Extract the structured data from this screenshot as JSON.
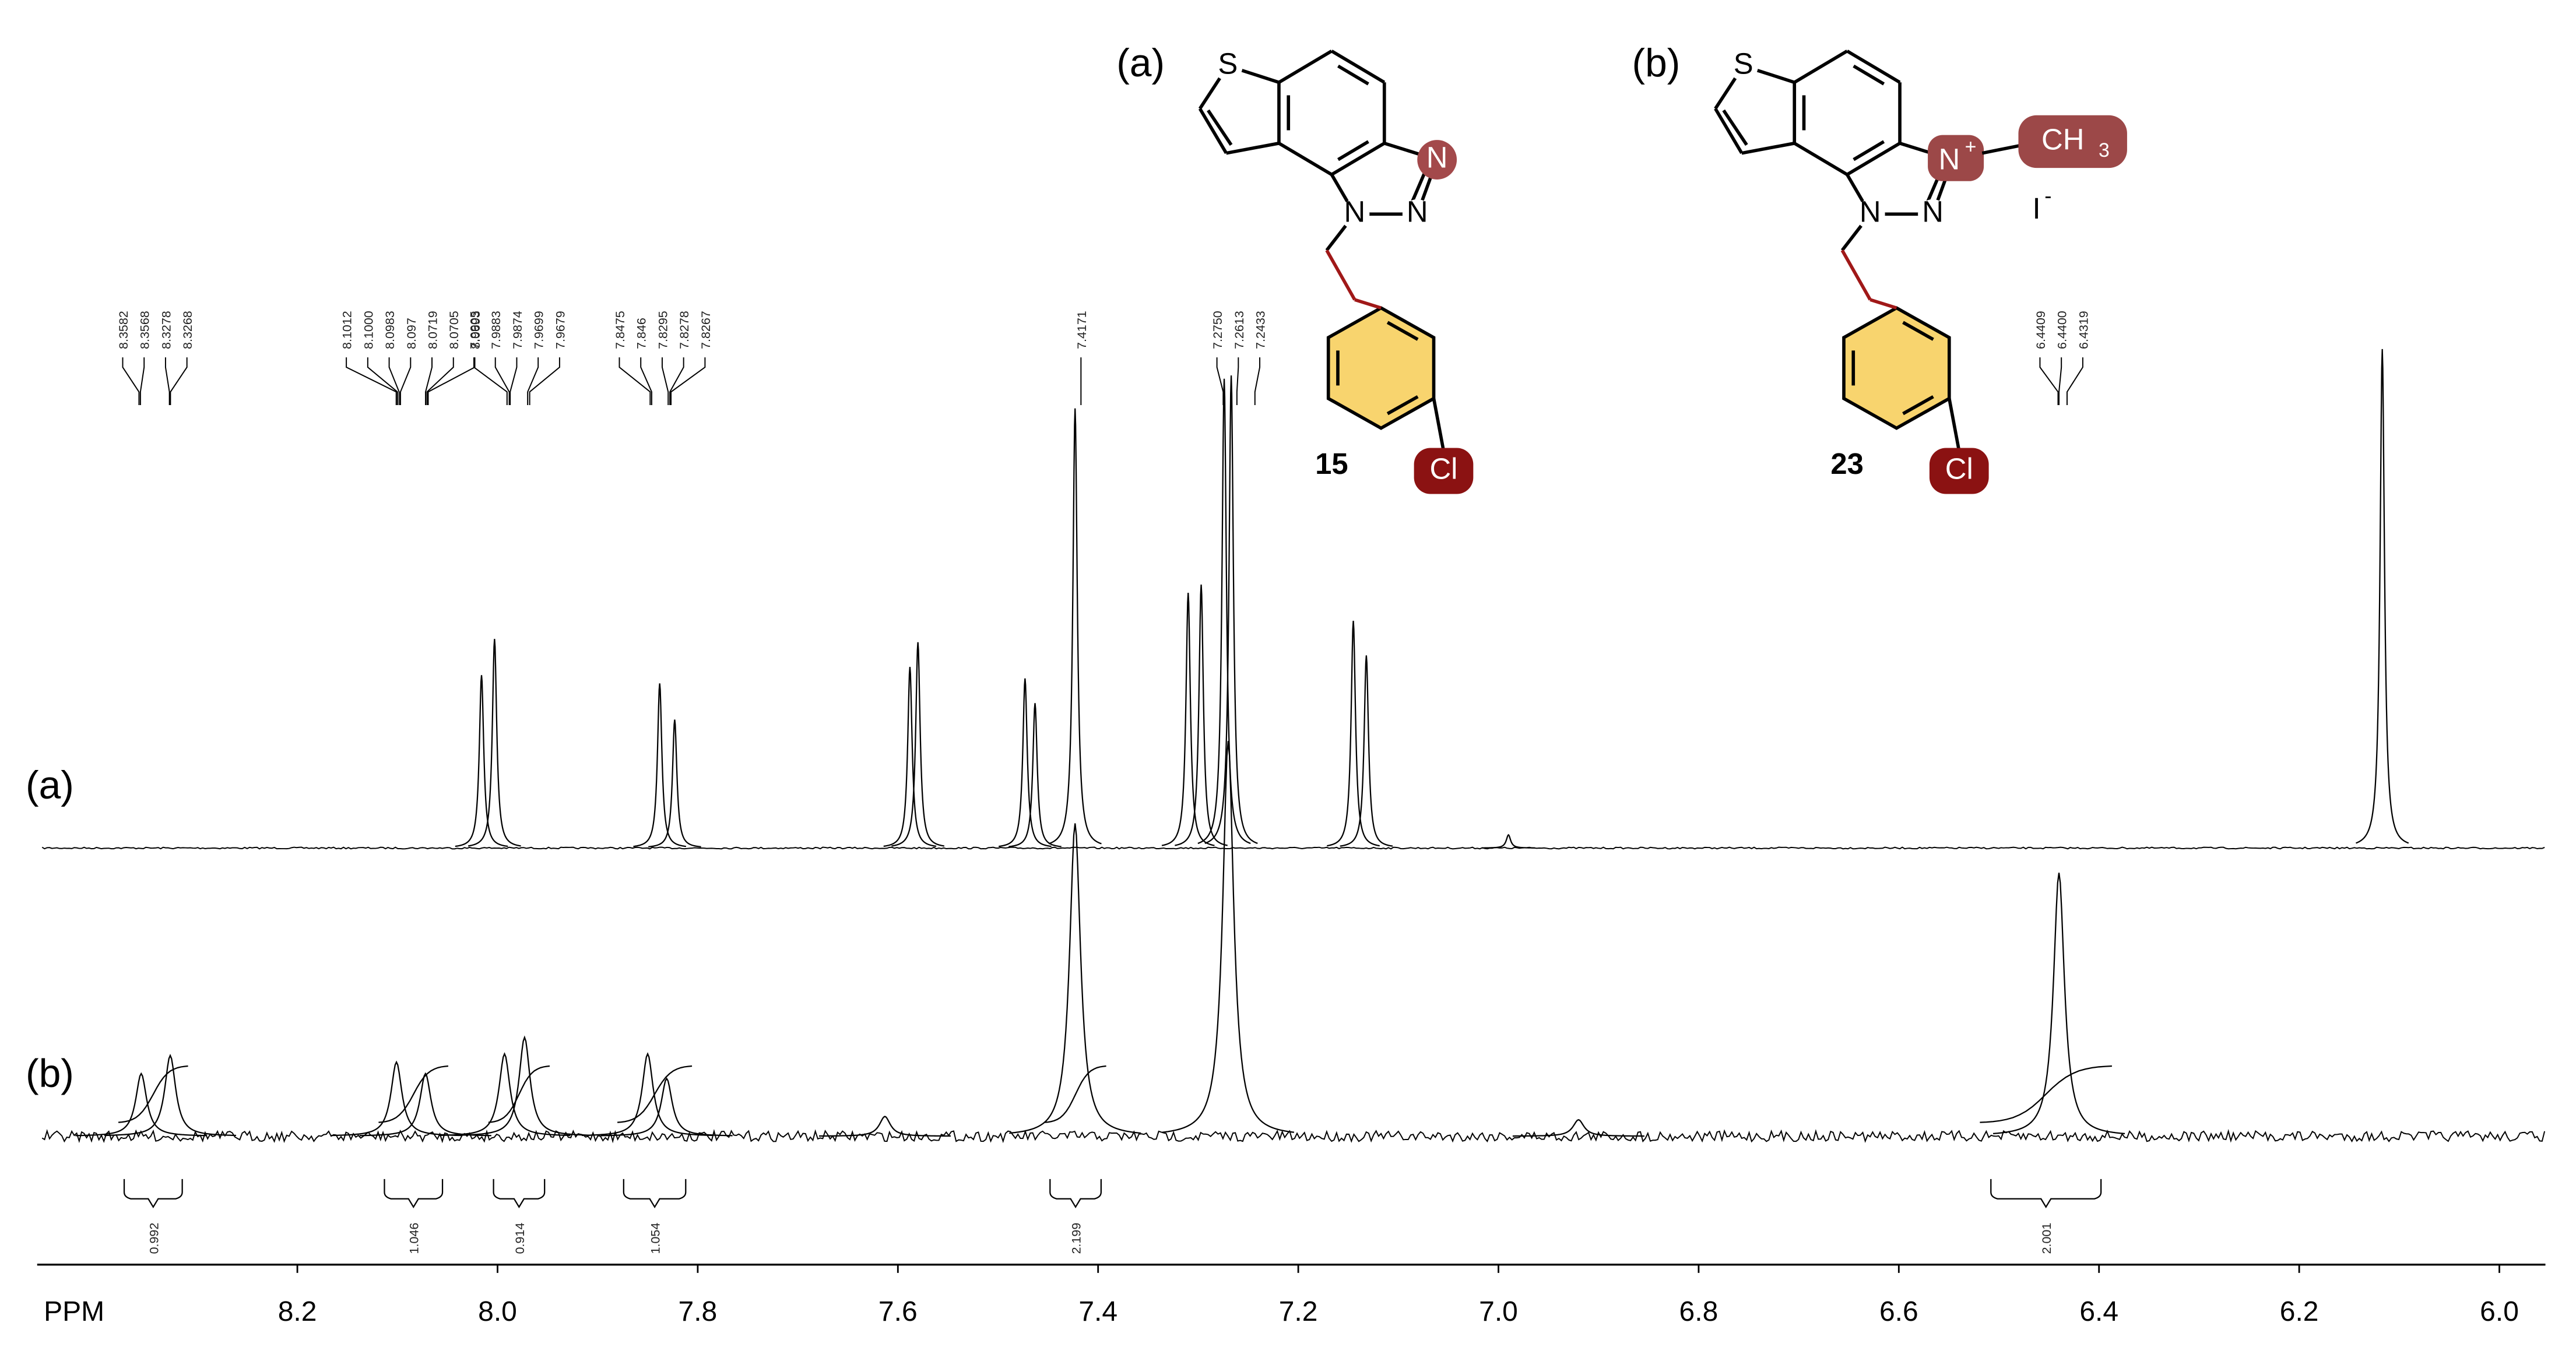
{
  "chart_data": {
    "type": "nmr",
    "x_label": "PPM",
    "xlim": [
      8.455,
      5.954
    ],
    "xticks": [
      8.2,
      {
        "value": 8,
        "label": "8.0"
      },
      7.8,
      7.6,
      7.4,
      7.2,
      {
        "value": 7,
        "label": "7.0"
      },
      6.8,
      6.6,
      6.4,
      6.2,
      {
        "value": 6,
        "label": "6.0"
      }
    ],
    "series": [
      {
        "name": "(a)",
        "color": "#000000",
        "x": [
          8.016,
          8.003,
          7.838,
          7.823,
          7.588,
          7.58,
          7.473,
          7.463,
          7.423,
          7.31,
          7.297,
          7.274,
          7.267,
          7.145,
          7.132,
          6.99,
          6.117
        ],
        "values": [
          105,
          127,
          100,
          78,
          110,
          125,
          103,
          88,
          267,
          155,
          160,
          285,
          287,
          138,
          117,
          8,
          303
        ]
      },
      {
        "name": "(b)",
        "color": "#000000",
        "x": [
          8.356,
          8.327,
          8.101,
          8.072,
          7.993,
          7.973,
          7.85,
          7.831,
          7.613,
          7.423,
          7.27,
          6.92,
          6.44
        ],
        "values": [
          38,
          49,
          45,
          38,
          50,
          60,
          50,
          35,
          12,
          190,
          240,
          10,
          160
        ]
      }
    ],
    "peak_labels": [
      [
        8.3582,
        8.3568,
        8.3278,
        8.3268
      ],
      [
        8.1012,
        {
          "value": 8.1,
          "label": "8.1000"
        },
        8.0983,
        8.097,
        8.0719,
        8.0705,
        8.0693
      ],
      [
        7.9905,
        7.9883,
        7.9874,
        7.9699,
        7.9679
      ],
      [
        7.8475,
        7.846,
        7.8295,
        7.8278,
        7.8267
      ],
      [
        7.4171
      ],
      [
        {
          "value": 7.275,
          "label": "7.2750"
        },
        7.2613,
        7.2433
      ],
      [
        6.4409,
        {
          "value": 6.44,
          "label": "6.4400"
        },
        6.4319
      ]
    ],
    "integrals": [
      {
        "from": 8.373,
        "to": 8.315,
        "value": 0.992
      },
      {
        "from": 8.113,
        "to": 8.055,
        "value": 1.046
      },
      {
        "from": 8.004,
        "to": 7.953,
        "value": 0.914
      },
      {
        "from": 7.874,
        "to": 7.812,
        "value": 1.054
      },
      {
        "from": 7.448,
        "to": 7.397,
        "value": 2.199
      },
      {
        "from": 6.508,
        "to": 6.398,
        "value": 2.001
      }
    ],
    "structures": [
      {
        "label": "(a)",
        "number": "15",
        "atoms": [
          "S",
          "N",
          "N",
          "N",
          "Cl"
        ]
      },
      {
        "label": "(b)",
        "number": "23",
        "atoms": [
          "S",
          "N",
          "+",
          "N",
          "N",
          "CH",
          "3",
          "I",
          "-",
          "Cl"
        ]
      }
    ]
  }
}
